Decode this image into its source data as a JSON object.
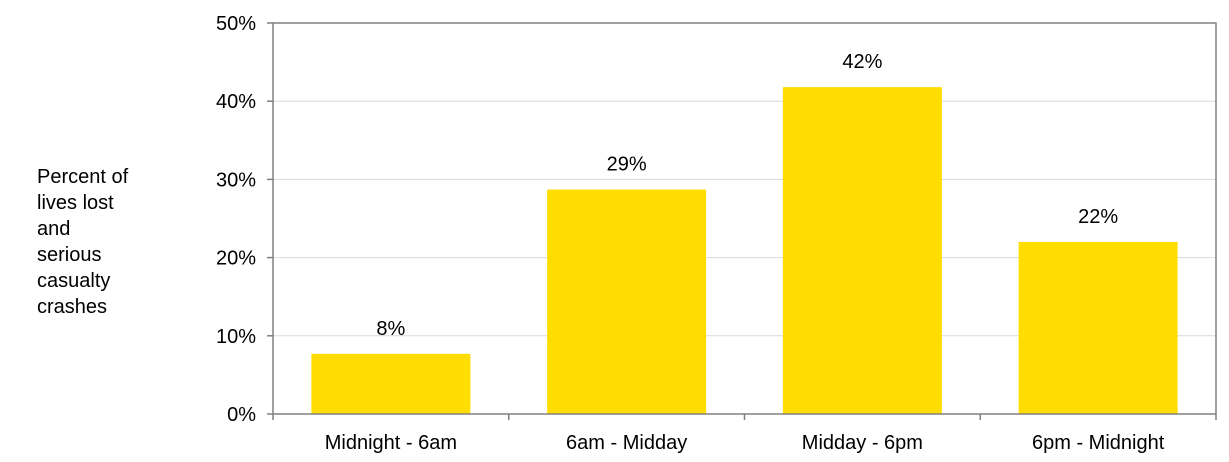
{
  "chart_data": {
    "type": "bar",
    "title": "",
    "xlabel": "",
    "ylabel_lines": [
      "Percent of",
      "lives lost",
      "and",
      "serious",
      "casualty",
      "crashes"
    ],
    "categories": [
      "Midnight - 6am",
      "6am - Midday",
      "Midday  - 6pm",
      "6pm - Midnight"
    ],
    "values": [
      8,
      29,
      42,
      22
    ],
    "plotted_values": [
      7.7,
      28.7,
      41.8,
      22.0
    ],
    "data_labels": [
      "8%",
      "29%",
      "42%",
      "22%"
    ],
    "ylim": [
      0,
      50
    ],
    "yticks": [
      0,
      10,
      20,
      30,
      40,
      50
    ],
    "ytick_labels": [
      "0%",
      "10%",
      "20%",
      "30%",
      "40%",
      "50%"
    ],
    "grid": true,
    "legend": "none",
    "bar_color": "#FFDD00",
    "grid_color": "#D9D9D9",
    "axis_color": "#808080"
  }
}
